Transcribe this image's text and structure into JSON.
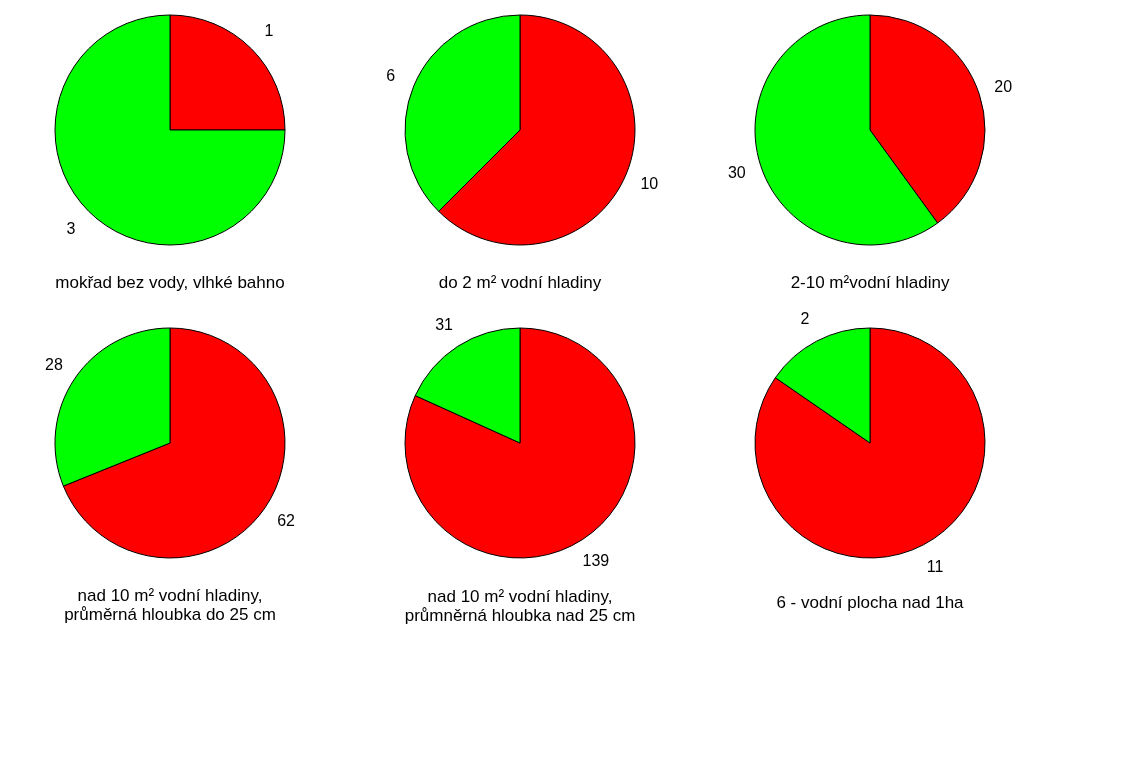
{
  "chart_data": [
    {
      "type": "pie",
      "title": "mokřad bez vody, vlhké bahno",
      "categories": [
        null,
        null
      ],
      "values": [
        1,
        3
      ],
      "colors": [
        "#ff0000",
        "#00ff00"
      ],
      "data_labels": true,
      "legend": false
    },
    {
      "type": "pie",
      "title": "do 2 m² vodní hladiny",
      "categories": [
        null,
        null
      ],
      "values": [
        10,
        6
      ],
      "colors": [
        "#ff0000",
        "#00ff00"
      ],
      "data_labels": true,
      "legend": false
    },
    {
      "type": "pie",
      "title": "2-10 m²vodní hladiny",
      "categories": [
        null,
        null
      ],
      "values": [
        20,
        30
      ],
      "colors": [
        "#ff0000",
        "#00ff00"
      ],
      "data_labels": true,
      "legend": false
    },
    {
      "type": "pie",
      "title": "nad 10 m² vodní hladiny, průměrná hloubka do 25 cm",
      "categories": [
        null,
        null
      ],
      "values": [
        62,
        28
      ],
      "colors": [
        "#ff0000",
        "#00ff00"
      ],
      "data_labels": true,
      "legend": false
    },
    {
      "type": "pie",
      "title": "nad 10 m² vodní hladiny, průmněrná hloubka nad 25 cm",
      "categories": [
        null,
        null
      ],
      "values": [
        139,
        31
      ],
      "colors": [
        "#ff0000",
        "#00ff00"
      ],
      "data_labels": true,
      "legend": false
    },
    {
      "type": "pie",
      "title": "6 - vodní plocha nad 1ha",
      "categories": [
        null,
        null
      ],
      "values": [
        11,
        2
      ],
      "colors": [
        "#ff0000",
        "#00ff00"
      ],
      "data_labels": true,
      "legend": false
    }
  ]
}
